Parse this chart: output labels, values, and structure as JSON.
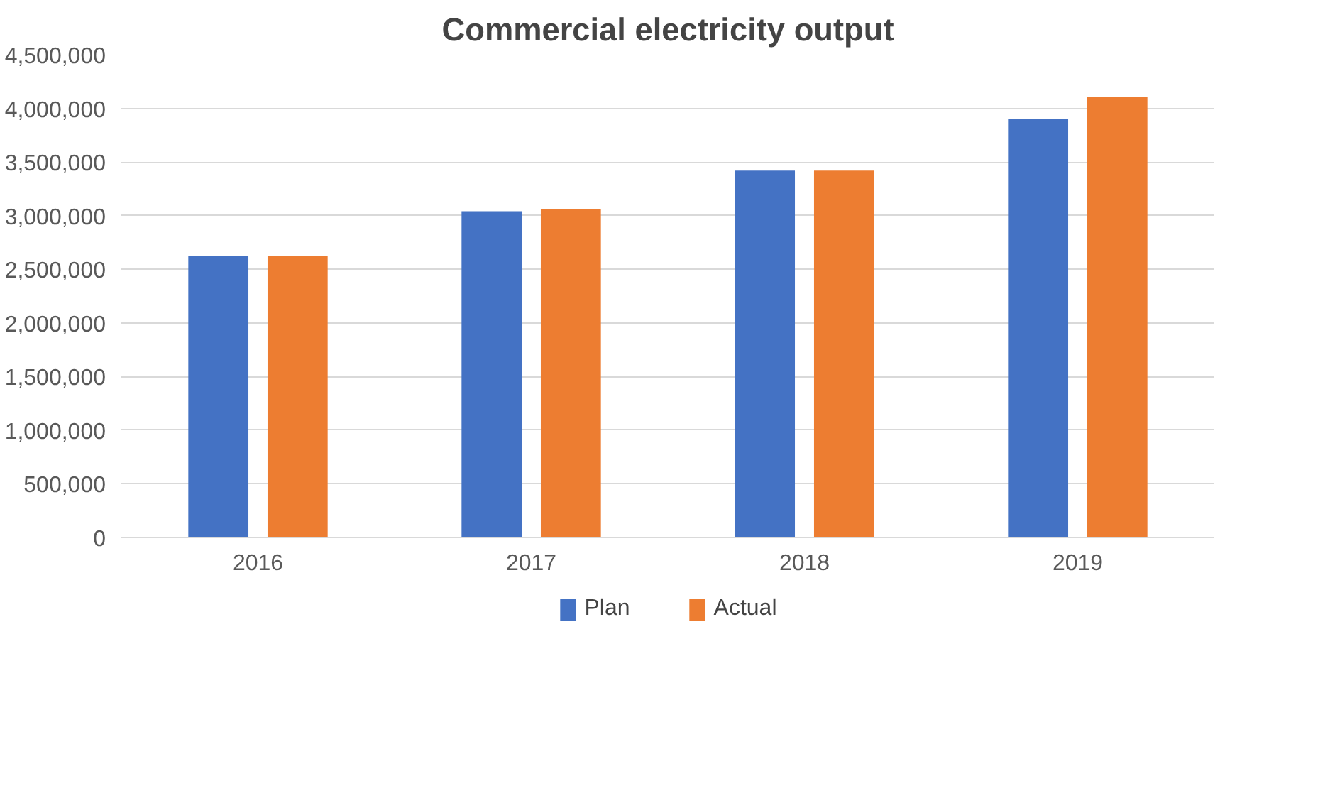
{
  "chart_data": {
    "type": "bar",
    "title": "Commercial electricity output",
    "categories": [
      "2016",
      "2017",
      "2018",
      "2019"
    ],
    "series": [
      {
        "name": "Plan",
        "color": "#4472c4",
        "values": [
          2620000,
          3040000,
          3420000,
          3900000
        ]
      },
      {
        "name": "Actual",
        "color": "#ed7d31",
        "values": [
          2620000,
          3060000,
          3420000,
          4110000
        ]
      }
    ],
    "ylim": [
      0,
      4500000
    ],
    "yticks": [
      {
        "value": 0,
        "label": "0"
      },
      {
        "value": 500000,
        "label": "500,000"
      },
      {
        "value": 1000000,
        "label": "1,000,000"
      },
      {
        "value": 1500000,
        "label": "1,500,000"
      },
      {
        "value": 2000000,
        "label": "2,000,000"
      },
      {
        "value": 2500000,
        "label": "2,500,000"
      },
      {
        "value": 3000000,
        "label": "3,000,000"
      },
      {
        "value": 3500000,
        "label": "3,500,000"
      },
      {
        "value": 4000000,
        "label": "4,000,000"
      },
      {
        "value": 4500000,
        "label": "4,500,000"
      }
    ],
    "grid": "y",
    "legend": "bottom"
  }
}
